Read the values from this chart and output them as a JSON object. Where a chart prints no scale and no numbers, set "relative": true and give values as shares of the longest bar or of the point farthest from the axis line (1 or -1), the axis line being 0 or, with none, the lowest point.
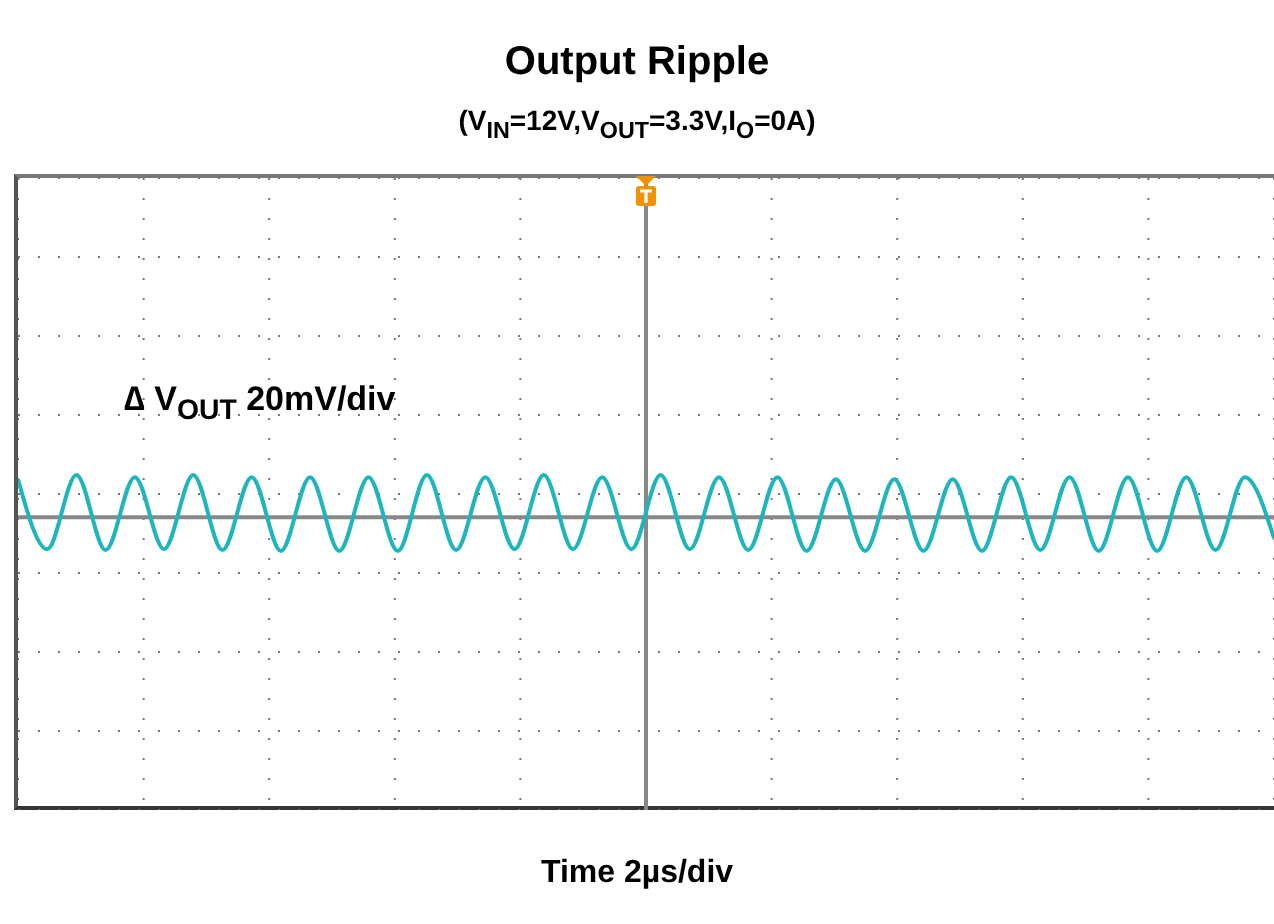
{
  "chart_data": {
    "type": "line",
    "title": "Output Ripple",
    "subtitle": "(V$_{IN}$=12V,V$_{OUT}$=3.3V,I$_{O}$=0A)",
    "annotations": [
      "∆ V$_{OUT}$ 20mV/div",
      "Time 2µs/div"
    ],
    "relative": true,
    "grid": true,
    "categories": [
      null,
      null,
      null,
      null,
      null,
      null,
      null,
      null,
      null,
      null,
      null,
      null,
      null,
      null,
      null,
      null,
      null,
      null,
      null,
      null,
      null,
      null,
      null,
      null,
      null,
      null,
      null,
      null,
      null,
      null,
      null,
      null,
      null,
      null,
      null,
      null,
      null,
      null,
      null,
      null,
      null,
      null,
      null,
      null
    ],
    "series": [
      {
        "color": "#1fb5bd",
        "values": [
          0.9,
          -0.76,
          1,
          -0.78,
          0.95,
          -0.76,
          1,
          -0.78,
          0.95,
          -0.8,
          0.95,
          -0.8,
          0.95,
          -0.8,
          1,
          -0.78,
          0.95,
          -0.76,
          1,
          -0.76,
          0.95,
          -0.76,
          1,
          -0.76,
          0.95,
          -0.78,
          0.95,
          -0.8,
          0.9,
          -0.8,
          0.9,
          -0.8,
          0.9,
          -0.8,
          0.95,
          -0.78,
          0.95,
          -0.8,
          0.95,
          -0.8,
          0.95,
          -0.78,
          0.95,
          -0.5
        ]
      }
    ]
  }
}
